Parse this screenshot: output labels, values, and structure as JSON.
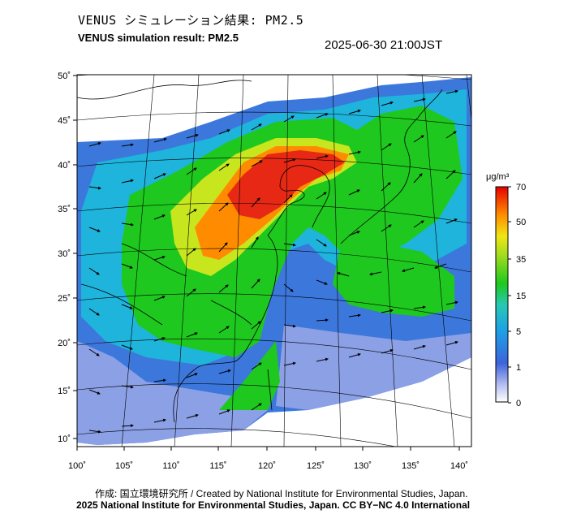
{
  "header": {
    "title_jp": "VENUS シミュレーション結果: PM2.5",
    "title_en": "VENUS simulation result: PM2.5",
    "timestamp": "2025-06-30 21:00JST"
  },
  "map": {
    "x_ticks": [
      "100˚",
      "105˚",
      "110˚",
      "115˚",
      "120˚",
      "125˚",
      "130˚",
      "135˚",
      "140˚"
    ],
    "y_ticks": [
      "50˚",
      "45˚",
      "40˚",
      "35˚",
      "30˚",
      "25˚",
      "20˚",
      "15˚",
      "10˚"
    ],
    "x_range": [
      100,
      141
    ],
    "y_range": [
      9,
      50
    ],
    "variable": "PM2.5",
    "overlay": "wind vectors"
  },
  "colorbar": {
    "unit": "μg/m³",
    "ticks": [
      "70",
      "50",
      "35",
      "15",
      "5",
      "1",
      "0"
    ],
    "colors": {
      "top": "#e60000",
      "orange": "#ff8c00",
      "yellow": "#e6e600",
      "green": "#1ec81e",
      "cyan": "#1eb4dc",
      "blue": "#1e50dc",
      "bottom": "#ffffff"
    }
  },
  "footer": {
    "credit_jp": "作成: 国立環境研究所 / Created by National Institute for Environmental Studies, Japan.",
    "credit_en": "2025 National Institute for Environmental Studies, Japan. CC BY−NC 4.0 International"
  }
}
